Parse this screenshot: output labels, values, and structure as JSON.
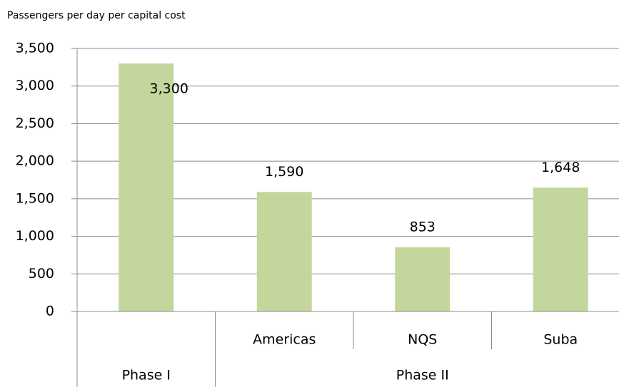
{
  "chart_data": {
    "type": "bar",
    "title": "Passengers per day per capital cost",
    "categories": [
      null,
      "Americas",
      "NQS",
      "Suba"
    ],
    "groups": [
      {
        "label": "Phase I",
        "count": 1
      },
      {
        "label": "Phase II",
        "count": 3
      }
    ],
    "values": [
      3300,
      1590,
      853,
      1648
    ],
    "value_labels": [
      "3,300",
      "1,590",
      "853",
      "1,648"
    ],
    "color": "#c3d69b",
    "ylim": [
      0,
      3500
    ],
    "yticks": [
      0,
      500,
      {
        "value": 1000,
        "label": "1,000"
      },
      {
        "value": 1500,
        "label": "1,500"
      },
      {
        "value": 2000,
        "label": "2,000"
      },
      {
        "value": 2500,
        "label": "2,500"
      },
      {
        "value": 3000,
        "label": "3,000"
      },
      {
        "value": 3500,
        "label": "3,500"
      }
    ],
    "grid": true
  }
}
